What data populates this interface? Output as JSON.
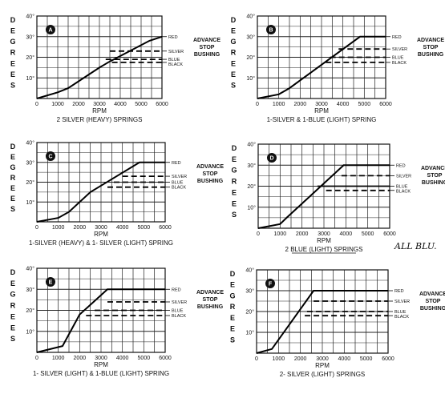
{
  "chart_data": [
    {
      "type": "line",
      "badge": "A",
      "caption": "2 SILVER (HEAVY) SPRINGS",
      "xlabel": "RPM",
      "ylabel": "DEGREES",
      "xlim": [
        0,
        6000
      ],
      "ylim": [
        0,
        40
      ],
      "x_ticks": [
        "0",
        "1000",
        "2000",
        "3000",
        "4000",
        "5000",
        "6000"
      ],
      "y_ticks": [
        "10°",
        "20°",
        "30°",
        "40°"
      ],
      "advance_label": [
        "ADVANCE",
        "STOP",
        "BUSHING"
      ],
      "series": [
        {
          "name": "RED",
          "style": "solid",
          "points": [
            [
              0,
              0
            ],
            [
              1000,
              3
            ],
            [
              1500,
              5
            ],
            [
              3000,
              15
            ],
            [
              3500,
              18
            ],
            [
              5400,
              28
            ],
            [
              6000,
              30
            ]
          ]
        },
        {
          "name": "SILVER",
          "style": "dashed",
          "points": [
            [
              3500,
              23
            ],
            [
              6000,
              23
            ]
          ]
        },
        {
          "name": "BLUE",
          "style": "dashed",
          "points": [
            [
              3300,
              19
            ],
            [
              6000,
              19
            ]
          ]
        },
        {
          "name": "BLACK",
          "style": "dashed",
          "points": [
            [
              3600,
              17.5
            ],
            [
              6000,
              17.5
            ]
          ]
        }
      ]
    },
    {
      "type": "line",
      "badge": "B",
      "caption": "1-SILVER & 1-BLUE (LIGHT) SPRING",
      "xlabel": "RPM",
      "ylabel": "DEGREES",
      "xlim": [
        0,
        6000
      ],
      "ylim": [
        0,
        40
      ],
      "x_ticks": [
        "0",
        "1000",
        "2000",
        "3000",
        "4000",
        "5000",
        "6000"
      ],
      "y_ticks": [
        "10°",
        "20°",
        "30°",
        "40°"
      ],
      "advance_label": [
        "ADVANCE",
        "STOP",
        "BUSHING"
      ],
      "series": [
        {
          "name": "RED",
          "style": "solid",
          "points": [
            [
              0,
              0
            ],
            [
              1000,
              2
            ],
            [
              1500,
              5
            ],
            [
              4800,
              30
            ],
            [
              6000,
              30
            ]
          ]
        },
        {
          "name": "SILVER",
          "style": "dashed",
          "points": [
            [
              3800,
              24
            ],
            [
              6000,
              24
            ]
          ]
        },
        {
          "name": "BLUE",
          "style": "dashed",
          "points": [
            [
              3400,
              20
            ],
            [
              6000,
              20
            ]
          ]
        },
        {
          "name": "BLACK",
          "style": "dashed",
          "points": [
            [
              3200,
              17.5
            ],
            [
              6000,
              17.5
            ]
          ]
        }
      ]
    },
    {
      "type": "line",
      "badge": "C",
      "caption": "1-SILVER (HEAVY) & 1- SILVER (LIGHT) SPRING",
      "xlabel": "RPM",
      "ylabel": "DEGREES",
      "xlim": [
        0,
        6000
      ],
      "ylim": [
        0,
        40
      ],
      "x_ticks": [
        "0",
        "1000",
        "2000",
        "3000",
        "4000",
        "5000",
        "6000"
      ],
      "y_ticks": [
        "10°",
        "20°",
        "30°",
        "40°"
      ],
      "advance_label": [
        "ADVANCE",
        "STOP",
        "BUSHING"
      ],
      "series": [
        {
          "name": "RED",
          "style": "solid",
          "points": [
            [
              0,
              0
            ],
            [
              1000,
              2
            ],
            [
              1500,
              5
            ],
            [
              2500,
              15
            ],
            [
              4800,
              30
            ],
            [
              6000,
              30
            ]
          ]
        },
        {
          "name": "SILVER",
          "style": "dashed",
          "points": [
            [
              4000,
              23
            ],
            [
              6000,
              23
            ]
          ]
        },
        {
          "name": "BLUE",
          "style": "dashed",
          "points": [
            [
              3600,
              20
            ],
            [
              6000,
              20
            ]
          ]
        },
        {
          "name": "BLACK",
          "style": "dashed",
          "points": [
            [
              3300,
              17.5
            ],
            [
              6000,
              17.5
            ]
          ]
        }
      ]
    },
    {
      "type": "line",
      "badge": "D",
      "caption": "2 BLUE (LIGHT) SPRINGS",
      "xlabel": "RPM",
      "ylabel": "DEGREES",
      "xlim": [
        0,
        6000
      ],
      "ylim": [
        0,
        40
      ],
      "x_ticks": [
        "0",
        "1000",
        "2000",
        "3000",
        "4000",
        "5000",
        "6000"
      ],
      "y_ticks": [
        "10°",
        "20°",
        "30°",
        "40°"
      ],
      "advance_label": [
        "ADVANCE",
        "STOP",
        "BUSHING"
      ],
      "annotation": "ALL BLU.",
      "series": [
        {
          "name": "RED",
          "style": "solid",
          "points": [
            [
              0,
              0
            ],
            [
              1000,
              2
            ],
            [
              1300,
              5
            ],
            [
              3900,
              30
            ],
            [
              6000,
              30
            ]
          ]
        },
        {
          "name": "SILVER",
          "style": "dashed",
          "points": [
            [
              3800,
              25
            ],
            [
              6000,
              25
            ]
          ]
        },
        {
          "name": "BLUE",
          "style": "solid",
          "points": [
            [
              2700,
              20
            ],
            [
              6000,
              20
            ]
          ]
        },
        {
          "name": "BLACK",
          "style": "dashed",
          "points": [
            [
              3100,
              18
            ],
            [
              6000,
              18
            ]
          ]
        }
      ]
    },
    {
      "type": "line",
      "badge": "E",
      "caption": "1- SILVER (LIGHT) & 1-BLUE (LIGHT) SPRING",
      "xlabel": "RPM",
      "ylabel": "DEGREES",
      "xlim": [
        0,
        6000
      ],
      "ylim": [
        0,
        40
      ],
      "x_ticks": [
        "0",
        "1000",
        "2000",
        "3000",
        "4000",
        "5000",
        "6000"
      ],
      "y_ticks": [
        "10°",
        "20°",
        "30°",
        "40°"
      ],
      "advance_label": [
        "ADVANCE",
        "STOP",
        "BUSHING"
      ],
      "series": [
        {
          "name": "RED",
          "style": "solid",
          "points": [
            [
              0,
              0
            ],
            [
              1200,
              3
            ],
            [
              2000,
              18
            ],
            [
              3300,
              30
            ],
            [
              6000,
              30
            ]
          ]
        },
        {
          "name": "SILVER",
          "style": "dashed",
          "points": [
            [
              3300,
              24
            ],
            [
              6000,
              24
            ]
          ]
        },
        {
          "name": "BLUE",
          "style": "dashed",
          "points": [
            [
              2700,
              20
            ],
            [
              6000,
              20
            ]
          ]
        },
        {
          "name": "BLACK",
          "style": "dashed",
          "points": [
            [
              2300,
              17.5
            ],
            [
              6000,
              17.5
            ]
          ]
        }
      ]
    },
    {
      "type": "line",
      "badge": "F",
      "caption": "2- SILVER (LIGHT) SPRINGS",
      "xlabel": "RPM",
      "ylabel": "DEGREES",
      "xlim": [
        0,
        6000
      ],
      "ylim": [
        0,
        40
      ],
      "x_ticks": [
        "0",
        "1000",
        "2000",
        "3000",
        "4000",
        "5000",
        "6000"
      ],
      "y_ticks": [
        "10°",
        "20°",
        "30°",
        "40°"
      ],
      "advance_label": [
        "ADVANCE",
        "STOP",
        "BUSHING"
      ],
      "series": [
        {
          "name": "RED",
          "style": "solid",
          "points": [
            [
              0,
              0
            ],
            [
              700,
              2
            ],
            [
              2600,
              30
            ],
            [
              6000,
              30
            ]
          ]
        },
        {
          "name": "SILVER",
          "style": "dashed",
          "points": [
            [
              2600,
              25
            ],
            [
              6000,
              25
            ]
          ]
        },
        {
          "name": "BLUE",
          "style": "dashed",
          "points": [
            [
              2300,
              20
            ],
            [
              6000,
              20
            ]
          ]
        },
        {
          "name": "BLACK",
          "style": "dashed",
          "points": [
            [
              2200,
              18
            ],
            [
              6000,
              18
            ]
          ]
        }
      ]
    }
  ]
}
